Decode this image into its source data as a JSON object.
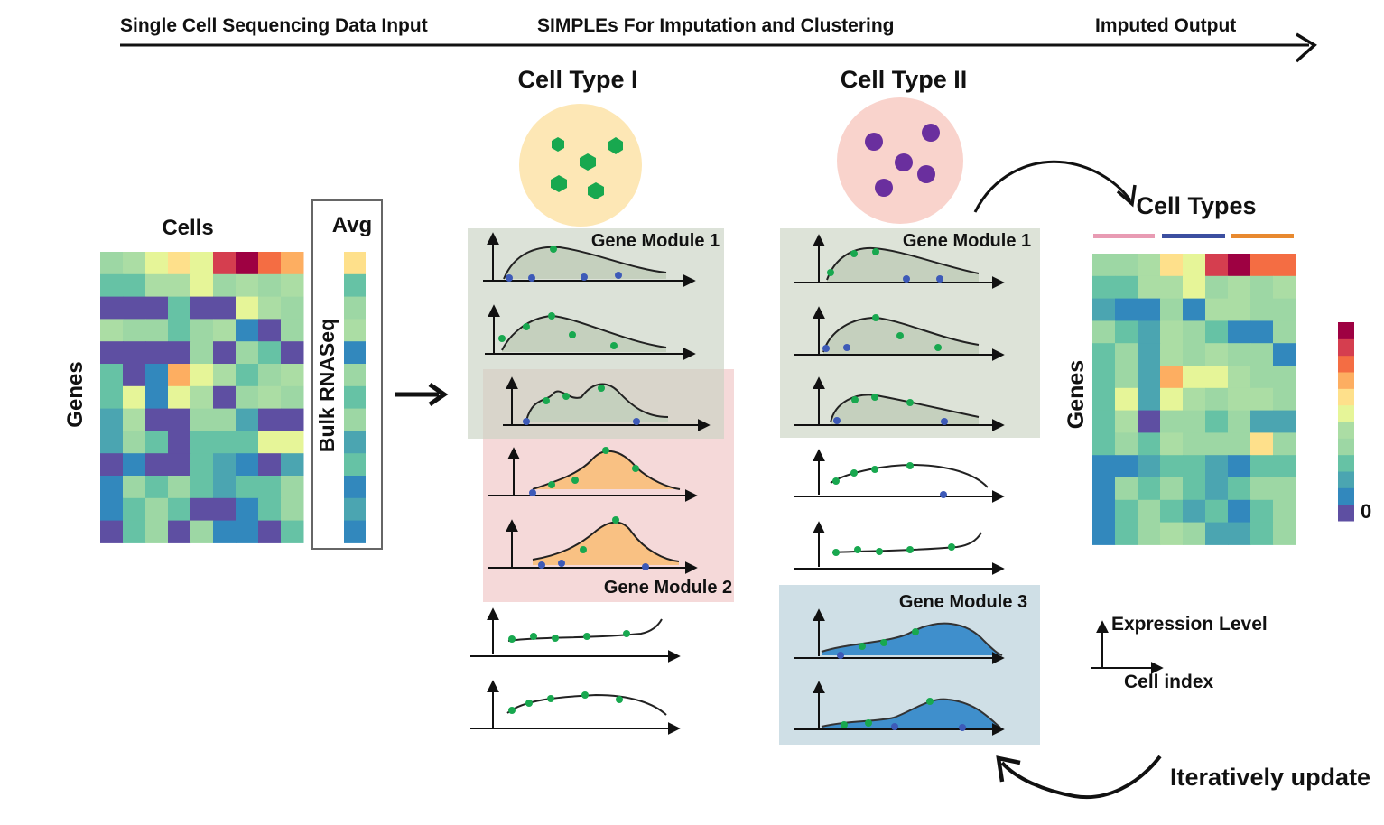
{
  "header": {
    "stage1": "Single Cell Sequencing Data Input",
    "stage2": "SIMPLEs For Imputation and Clustering",
    "stage3": "Imputed Output"
  },
  "input": {
    "cells_label": "Cells",
    "genes_label": "Genes",
    "avg_label": "Avg",
    "bulk_label": "Bulk RNASeq"
  },
  "cell_types": {
    "type1": "Cell Type I",
    "type2": "Cell Type II"
  },
  "modules": {
    "m1": "Gene Module 1",
    "m2": "Gene Module 2",
    "m3": "Gene Module 3"
  },
  "output": {
    "cell_types_label": "Cell Types",
    "genes_label": "Genes",
    "colorbar_zero": "0"
  },
  "legend": {
    "y_label": "Expression Level",
    "x_label": "Cell index"
  },
  "loop_label": "Iteratively update",
  "colors": {
    "module_green": "#dde3d8",
    "module_red": "#f5d9d9",
    "module_blue": "#cfdfe6",
    "celltype1_fill": "#fde7b5",
    "celltype2_fill": "#f9d3cc",
    "dot_green": "#18a84f",
    "dot_blue": "#3d5ab8",
    "dot_purple": "#6a2f9e",
    "curve_green_fill": "#c5d0be",
    "curve_orange_fill": "#f9c183",
    "curve_blue_fill": "#3f8fcc",
    "bar_pink": "#e89bb3",
    "bar_navy": "#3c4fa0",
    "bar_orange": "#e8892f"
  },
  "heatmap_palette": [
    "#5e4fa2",
    "#3288bd",
    "#4ba5b1",
    "#66c2a5",
    "#9dd7a4",
    "#abdda4",
    "#e6f598",
    "#fee08b",
    "#fdae61",
    "#f46d43",
    "#d53e4f",
    "#9e0142"
  ],
  "input_matrix": [
    [
      4,
      5,
      6,
      7,
      6,
      10,
      11,
      9,
      8
    ],
    [
      3,
      3,
      5,
      5,
      6,
      4,
      5,
      4,
      5
    ],
    [
      0,
      0,
      0,
      3,
      0,
      0,
      6,
      5,
      4
    ],
    [
      5,
      4,
      4,
      3,
      4,
      5,
      1,
      0,
      4
    ],
    [
      0,
      0,
      0,
      0,
      4,
      0,
      4,
      3,
      0
    ],
    [
      3,
      0,
      1,
      8,
      6,
      5,
      3,
      4,
      5
    ],
    [
      3,
      6,
      1,
      6,
      5,
      0,
      4,
      5,
      4
    ],
    [
      2,
      5,
      0,
      0,
      4,
      4,
      2,
      0,
      0
    ],
    [
      2,
      4,
      3,
      0,
      3,
      3,
      3,
      6,
      6
    ],
    [
      0,
      1,
      0,
      0,
      3,
      2,
      1,
      0,
      2
    ],
    [
      1,
      4,
      3,
      4,
      3,
      2,
      3,
      3,
      4
    ],
    [
      1,
      3,
      4,
      3,
      0,
      0,
      1,
      3,
      4
    ],
    [
      0,
      3,
      4,
      0,
      4,
      1,
      1,
      0,
      3
    ]
  ],
  "bulk_vector": [
    7,
    3,
    4,
    5,
    1,
    4,
    3,
    4,
    2,
    3,
    1,
    2,
    1
  ],
  "output_matrix": [
    [
      4,
      4,
      5,
      7,
      6,
      10,
      11,
      9,
      9
    ],
    [
      3,
      3,
      5,
      5,
      6,
      4,
      5,
      4,
      5
    ],
    [
      2,
      1,
      1,
      4,
      1,
      5,
      5,
      4,
      4
    ],
    [
      4,
      3,
      2,
      5,
      4,
      3,
      1,
      1,
      4
    ],
    [
      3,
      4,
      2,
      5,
      4,
      5,
      4,
      4,
      1
    ],
    [
      3,
      4,
      2,
      8,
      6,
      6,
      5,
      4,
      4
    ],
    [
      3,
      6,
      2,
      6,
      5,
      4,
      5,
      5,
      4
    ],
    [
      3,
      5,
      0,
      4,
      4,
      3,
      4,
      2,
      2
    ],
    [
      3,
      4,
      3,
      5,
      4,
      4,
      4,
      7,
      4
    ],
    [
      1,
      1,
      2,
      3,
      3,
      2,
      1,
      3,
      3
    ],
    [
      1,
      4,
      3,
      4,
      3,
      2,
      3,
      4,
      4
    ],
    [
      1,
      3,
      4,
      3,
      2,
      3,
      1,
      3,
      4
    ],
    [
      1,
      3,
      4,
      5,
      4,
      2,
      2,
      3,
      4
    ]
  ]
}
